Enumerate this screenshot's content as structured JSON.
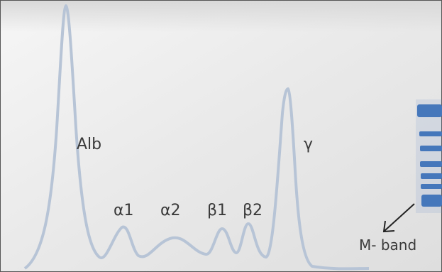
{
  "labels": {
    "alb": "Alb",
    "alpha1": "α1",
    "alpha2": "α2",
    "beta1": "β1",
    "beta2": "β2",
    "gamma": "γ",
    "m_band": "M- band"
  }
}
